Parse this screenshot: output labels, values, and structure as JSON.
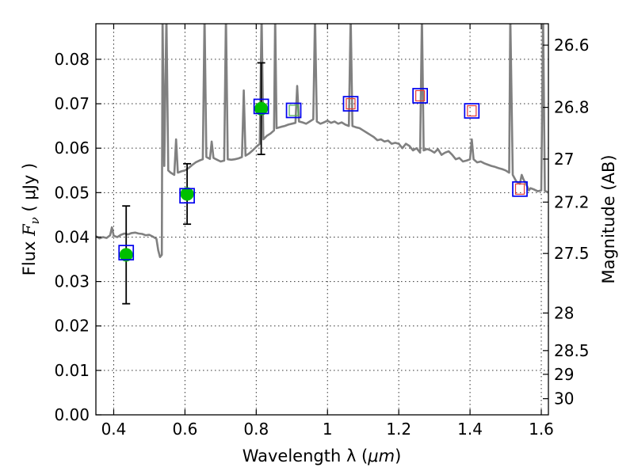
{
  "chart_data": {
    "type": "scatter",
    "xlabel_prefix": "Wavelength  λ (",
    "xlabel_unit": "μm",
    "xlabel_suffix": ")",
    "ylabel_prefix": "Flux  ",
    "ylabel_symbol": "F",
    "ylabel_sub": "ν",
    "ylabel_suffix": " ( μJy )",
    "y2label": "Magnitude (AB)",
    "xlim": [
      0.35,
      1.62
    ],
    "ylim": [
      0.0,
      0.088
    ],
    "x_ticks": [
      0.4,
      0.6,
      0.8,
      1.0,
      1.2,
      1.4,
      1.6
    ],
    "x_tick_labels": [
      "0.4",
      "0.6",
      "0.8",
      "1",
      "1.2",
      "1.4",
      "1.6"
    ],
    "y_ticks": [
      0.0,
      0.01,
      0.02,
      0.03,
      0.04,
      0.05,
      0.06,
      0.07,
      0.08
    ],
    "y_tick_labels": [
      "0.00",
      "0.01",
      "0.02",
      "0.03",
      "0.04",
      "0.05",
      "0.06",
      "0.07",
      "0.08"
    ],
    "mag_ticks": [
      26.6,
      26.8,
      27.0,
      27.2,
      27.5,
      28.0,
      28.5,
      29.0,
      30.0
    ],
    "mag_tick_labels": [
      "26.6",
      "26.8",
      "27",
      "27.2",
      "27.5",
      "28",
      "28.5",
      "29",
      "30"
    ],
    "grid": true,
    "observed": [
      {
        "x": 0.435,
        "y": 0.036,
        "err": 0.011
      },
      {
        "x": 0.606,
        "y": 0.0497,
        "err": 0.0068
      },
      {
        "x": 0.814,
        "y": 0.0689,
        "err": 0.0103
      }
    ],
    "model_bands": [
      {
        "x": 0.435,
        "y": 0.0365,
        "inner": "none"
      },
      {
        "x": 0.606,
        "y": 0.0493,
        "inner": "none"
      },
      {
        "x": 0.814,
        "y": 0.0694,
        "inner": "none"
      },
      {
        "x": 0.905,
        "y": 0.0685,
        "inner": "green"
      },
      {
        "x": 1.065,
        "y": 0.07,
        "inner": "red"
      },
      {
        "x": 1.26,
        "y": 0.0718,
        "inner": "red"
      },
      {
        "x": 1.405,
        "y": 0.0684,
        "inner": "red"
      },
      {
        "x": 1.54,
        "y": 0.0508,
        "inner": "red"
      }
    ],
    "spectrum": [
      [
        0.35,
        0.0402
      ],
      [
        0.36,
        0.0397
      ],
      [
        0.37,
        0.04
      ],
      [
        0.38,
        0.0398
      ],
      [
        0.39,
        0.0404
      ],
      [
        0.395,
        0.0422
      ],
      [
        0.4,
        0.0403
      ],
      [
        0.41,
        0.04
      ],
      [
        0.42,
        0.0405
      ],
      [
        0.43,
        0.0408
      ],
      [
        0.44,
        0.0406
      ],
      [
        0.45,
        0.0409
      ],
      [
        0.46,
        0.041
      ],
      [
        0.47,
        0.0408
      ],
      [
        0.48,
        0.0407
      ],
      [
        0.49,
        0.0404
      ],
      [
        0.5,
        0.0405
      ],
      [
        0.51,
        0.0401
      ],
      [
        0.52,
        0.0396
      ],
      [
        0.525,
        0.037
      ],
      [
        0.53,
        0.0355
      ],
      [
        0.535,
        0.036
      ],
      [
        0.537,
        0.09
      ],
      [
        0.542,
        0.056
      ],
      [
        0.548,
        0.09
      ],
      [
        0.553,
        0.055
      ],
      [
        0.56,
        0.0545
      ],
      [
        0.57,
        0.054
      ],
      [
        0.575,
        0.062
      ],
      [
        0.58,
        0.0545
      ],
      [
        0.59,
        0.0548
      ],
      [
        0.6,
        0.055
      ],
      [
        0.61,
        0.0555
      ],
      [
        0.62,
        0.0562
      ],
      [
        0.63,
        0.0568
      ],
      [
        0.64,
        0.0572
      ],
      [
        0.65,
        0.0575
      ],
      [
        0.655,
        0.09
      ],
      [
        0.66,
        0.058
      ],
      [
        0.67,
        0.0576
      ],
      [
        0.675,
        0.0615
      ],
      [
        0.68,
        0.0578
      ],
      [
        0.69,
        0.0574
      ],
      [
        0.7,
        0.057
      ],
      [
        0.71,
        0.0572
      ],
      [
        0.715,
        0.09
      ],
      [
        0.72,
        0.0575
      ],
      [
        0.73,
        0.0574
      ],
      [
        0.74,
        0.0575
      ],
      [
        0.75,
        0.0577
      ],
      [
        0.76,
        0.058
      ],
      [
        0.765,
        0.073
      ],
      [
        0.77,
        0.0583
      ],
      [
        0.78,
        0.0588
      ],
      [
        0.79,
        0.0595
      ],
      [
        0.8,
        0.0603
      ],
      [
        0.81,
        0.061
      ],
      [
        0.815,
        0.09
      ],
      [
        0.82,
        0.062
      ],
      [
        0.83,
        0.0628
      ],
      [
        0.84,
        0.0633
      ],
      [
        0.85,
        0.064
      ],
      [
        0.853,
        0.09
      ],
      [
        0.857,
        0.0645
      ],
      [
        0.87,
        0.0648
      ],
      [
        0.88,
        0.065
      ],
      [
        0.89,
        0.0653
      ],
      [
        0.9,
        0.0655
      ],
      [
        0.91,
        0.0657
      ],
      [
        0.915,
        0.074
      ],
      [
        0.92,
        0.066
      ],
      [
        0.93,
        0.0658
      ],
      [
        0.94,
        0.0655
      ],
      [
        0.95,
        0.066
      ],
      [
        0.96,
        0.0665
      ],
      [
        0.965,
        0.09
      ],
      [
        0.97,
        0.066
      ],
      [
        0.98,
        0.0655
      ],
      [
        0.99,
        0.0658
      ],
      [
        1.0,
        0.0662
      ],
      [
        1.01,
        0.0657
      ],
      [
        1.02,
        0.066
      ],
      [
        1.03,
        0.0655
      ],
      [
        1.04,
        0.0658
      ],
      [
        1.05,
        0.0653
      ],
      [
        1.06,
        0.065
      ],
      [
        1.065,
        0.09
      ],
      [
        1.07,
        0.065
      ],
      [
        1.08,
        0.0647
      ],
      [
        1.09,
        0.0645
      ],
      [
        1.1,
        0.064
      ],
      [
        1.11,
        0.0635
      ],
      [
        1.12,
        0.063
      ],
      [
        1.13,
        0.0625
      ],
      [
        1.14,
        0.0618
      ],
      [
        1.15,
        0.062
      ],
      [
        1.16,
        0.0615
      ],
      [
        1.17,
        0.0617
      ],
      [
        1.18,
        0.061
      ],
      [
        1.19,
        0.0612
      ],
      [
        1.2,
        0.061
      ],
      [
        1.21,
        0.06
      ],
      [
        1.22,
        0.061
      ],
      [
        1.23,
        0.0605
      ],
      [
        1.24,
        0.0595
      ],
      [
        1.25,
        0.06
      ],
      [
        1.26,
        0.059
      ],
      [
        1.265,
        0.09
      ],
      [
        1.27,
        0.0595
      ],
      [
        1.28,
        0.0598
      ],
      [
        1.29,
        0.0595
      ],
      [
        1.3,
        0.059
      ],
      [
        1.31,
        0.0598
      ],
      [
        1.32,
        0.0585
      ],
      [
        1.33,
        0.059
      ],
      [
        1.34,
        0.0593
      ],
      [
        1.35,
        0.0585
      ],
      [
        1.36,
        0.0575
      ],
      [
        1.37,
        0.0578
      ],
      [
        1.38,
        0.057
      ],
      [
        1.39,
        0.0572
      ],
      [
        1.4,
        0.0575
      ],
      [
        1.405,
        0.062
      ],
      [
        1.41,
        0.0575
      ],
      [
        1.42,
        0.0568
      ],
      [
        1.43,
        0.057
      ],
      [
        1.44,
        0.0566
      ],
      [
        1.45,
        0.0563
      ],
      [
        1.46,
        0.056
      ],
      [
        1.47,
        0.0558
      ],
      [
        1.48,
        0.0555
      ],
      [
        1.49,
        0.0553
      ],
      [
        1.5,
        0.055
      ],
      [
        1.51,
        0.0545
      ],
      [
        1.513,
        0.09
      ],
      [
        1.52,
        0.054
      ],
      [
        1.53,
        0.0525
      ],
      [
        1.54,
        0.052
      ],
      [
        1.545,
        0.054
      ],
      [
        1.55,
        0.053
      ],
      [
        1.56,
        0.0515
      ],
      [
        1.565,
        0.0505
      ],
      [
        1.57,
        0.051
      ],
      [
        1.58,
        0.0507
      ],
      [
        1.59,
        0.0503
      ],
      [
        1.6,
        0.0505
      ],
      [
        1.605,
        0.09
      ],
      [
        1.61,
        0.0504
      ],
      [
        1.62,
        0.05
      ]
    ]
  },
  "colors": {
    "spectrum": "#808080",
    "observed_fill": "#00c000",
    "model_outline": "#0000ee",
    "inner_green": "#4caf50",
    "inner_red": "#e53935",
    "error_bar": "#000000",
    "axis": "#000000"
  }
}
